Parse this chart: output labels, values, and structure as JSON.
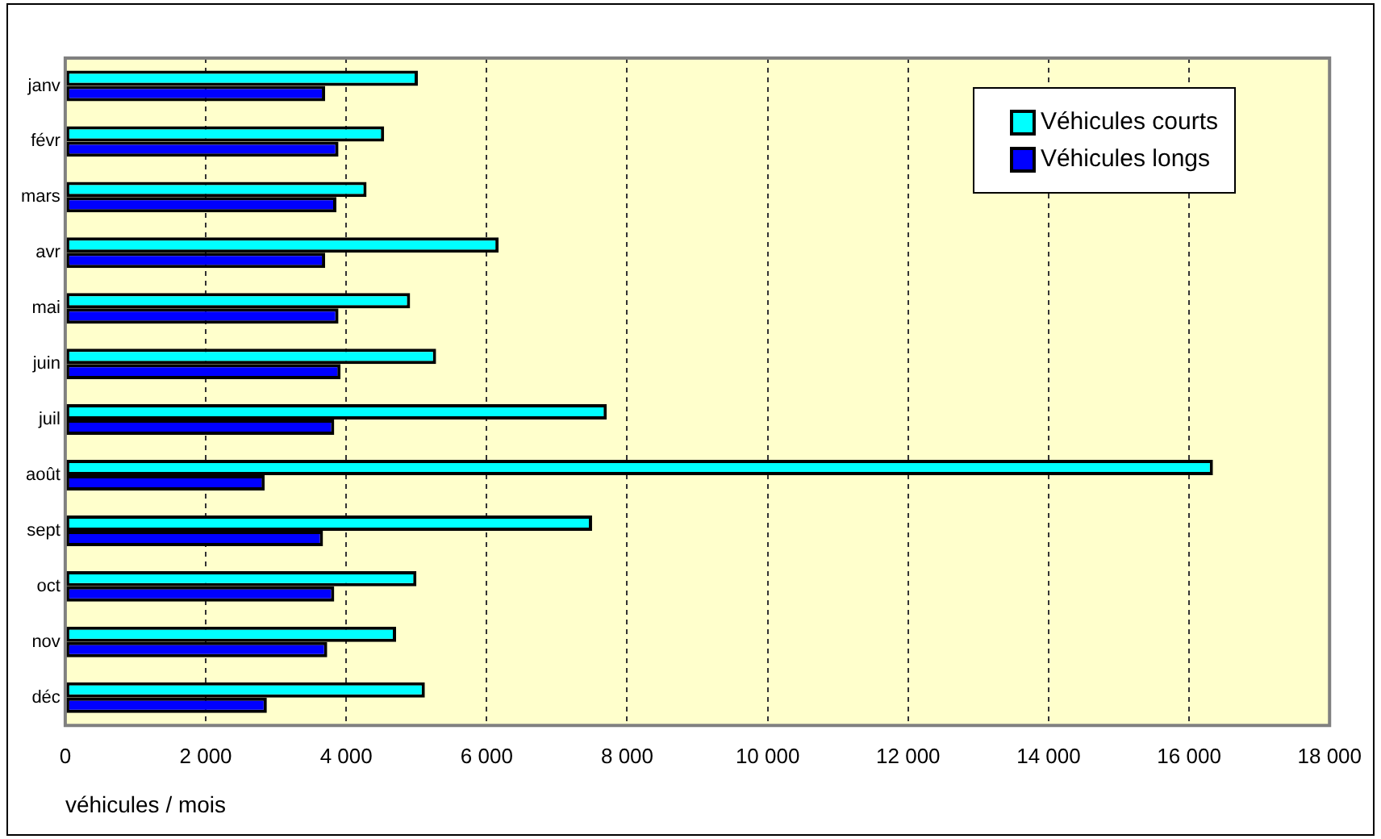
{
  "chart_data": {
    "type": "bar",
    "orientation": "horizontal",
    "xlabel": "véhicules / mois",
    "categories": [
      "janv",
      "févr",
      "mars",
      "avr",
      "mai",
      "juin",
      "juil",
      "août",
      "sept",
      "oct",
      "nov",
      "déc"
    ],
    "series": [
      {
        "name": "Véhicules courts",
        "color": "#00ffff",
        "values": [
          5020,
          4540,
          4290,
          6170,
          4910,
          5280,
          7710,
          16340,
          7500,
          5000,
          4710,
          5120
        ]
      },
      {
        "name": "Véhicules longs",
        "color": "#0000ff",
        "values": [
          3700,
          3890,
          3860,
          3700,
          3890,
          3920,
          3830,
          2840,
          3670,
          3830,
          3730,
          2870
        ]
      }
    ],
    "xlim": [
      0,
      18000
    ],
    "xticks": [
      0,
      {
        "value": 2000,
        "label": "2 000"
      },
      {
        "value": 4000,
        "label": "4 000"
      },
      {
        "value": 6000,
        "label": "6 000"
      },
      {
        "value": 8000,
        "label": "8 000"
      },
      {
        "value": 10000,
        "label": "10 000"
      },
      {
        "value": 12000,
        "label": "12 000"
      },
      {
        "value": 14000,
        "label": "14 000"
      },
      {
        "value": 16000,
        "label": "16 000"
      },
      {
        "value": 18000,
        "label": "18 000"
      }
    ],
    "grid": "x",
    "legend": "top right"
  }
}
